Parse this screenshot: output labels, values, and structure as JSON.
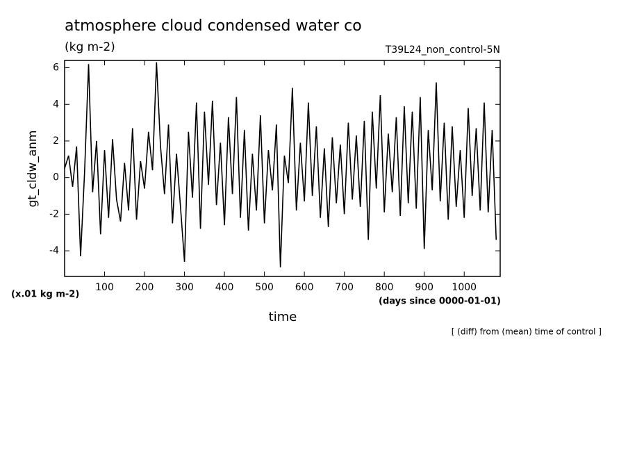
{
  "chart_data": {
    "type": "line",
    "title": "atmosphere cloud condensed water co",
    "units": "(kg m-2)",
    "subtitle": "T39L24_non_control-5N",
    "ylabel": "gt_cldw_anm",
    "yunits": "(x.01 kg m-2)",
    "xlabel": "time",
    "xunits": "(days since 0000-01-01)",
    "note": "[ (diff) from (mean) time of control ]",
    "xlim": [
      0,
      1090
    ],
    "ylim": [
      -5.4,
      6.4
    ],
    "xticks": [
      100,
      200,
      300,
      400,
      500,
      600,
      700,
      800,
      900,
      1000
    ],
    "yticks": [
      -4,
      -2,
      0,
      2,
      4,
      6
    ],
    "series": [
      {
        "color": "#000000",
        "x": [
          0,
          10,
          20,
          30,
          40,
          50,
          60,
          70,
          80,
          90,
          100,
          110,
          120,
          130,
          140,
          150,
          160,
          170,
          180,
          190,
          200,
          210,
          220,
          230,
          240,
          250,
          260,
          270,
          280,
          290,
          300,
          310,
          320,
          330,
          340,
          350,
          360,
          370,
          380,
          390,
          400,
          410,
          420,
          430,
          440,
          450,
          460,
          470,
          480,
          490,
          500,
          510,
          520,
          530,
          540,
          550,
          560,
          570,
          580,
          590,
          600,
          610,
          620,
          630,
          640,
          650,
          660,
          670,
          680,
          690,
          700,
          710,
          720,
          730,
          740,
          750,
          760,
          770,
          780,
          790,
          800,
          810,
          820,
          830,
          840,
          850,
          860,
          870,
          880,
          890,
          900,
          910,
          920,
          930,
          940,
          950,
          960,
          970,
          980,
          990,
          1000,
          1010,
          1020,
          1030,
          1040,
          1050,
          1060,
          1070,
          1080
        ],
        "values": [
          0.5,
          1.2,
          -0.5,
          1.7,
          -4.3,
          0.3,
          6.2,
          -0.8,
          2.0,
          -3.1,
          1.5,
          -2.2,
          2.1,
          -1.2,
          -2.4,
          0.8,
          -1.8,
          2.7,
          -2.3,
          0.9,
          -0.6,
          2.5,
          0.4,
          6.3,
          1.7,
          -0.9,
          2.9,
          -2.5,
          1.3,
          -1.6,
          -4.6,
          2.5,
          -1.1,
          4.1,
          -2.8,
          3.6,
          -0.4,
          4.2,
          -1.5,
          1.9,
          -2.6,
          3.3,
          -0.9,
          4.4,
          -2.2,
          2.6,
          -2.9,
          1.3,
          -1.8,
          3.4,
          -2.5,
          1.5,
          -0.7,
          2.9,
          -4.9,
          1.2,
          -0.3,
          4.9,
          -1.8,
          1.9,
          -1.3,
          4.1,
          -1.0,
          2.8,
          -2.2,
          1.6,
          -2.7,
          2.2,
          -1.4,
          1.8,
          -2.0,
          3.0,
          -1.2,
          2.3,
          -1.6,
          3.1,
          -3.4,
          3.6,
          -0.6,
          4.5,
          -1.9,
          2.4,
          -0.8,
          3.3,
          -2.1,
          3.9,
          -1.4,
          3.6,
          -1.7,
          4.4,
          -3.9,
          2.6,
          -0.7,
          5.2,
          -1.3,
          3.0,
          -2.3,
          2.8,
          -1.6,
          1.5,
          -2.2,
          3.8,
          -1.0,
          2.7,
          -1.8,
          4.1,
          -1.9,
          2.6,
          -3.4
        ]
      }
    ]
  }
}
